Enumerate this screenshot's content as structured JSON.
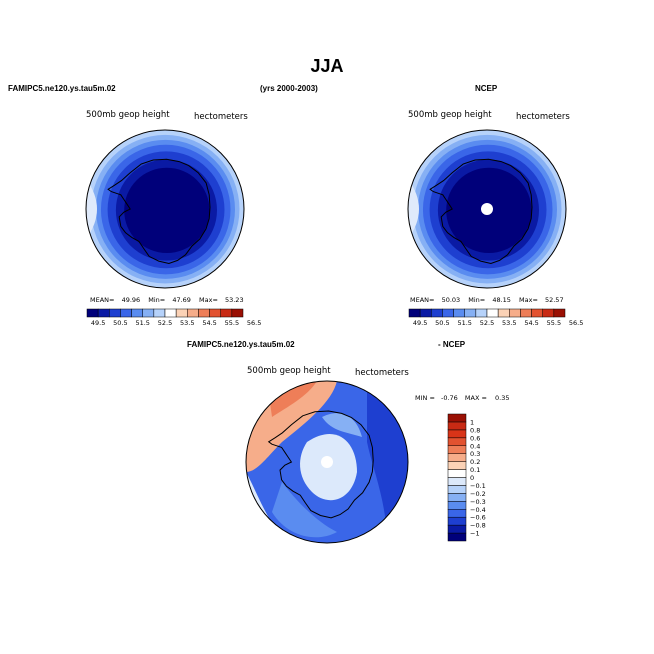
{
  "figure": {
    "title": "JJA",
    "left_title": "FAMIPC5.ne120.ys.tau5m.02",
    "center_title": "(yrs 2000-2003)",
    "right_title": "NCEP",
    "diff_left_title": "FAMIPC5.ne120.ys.tau5m.02",
    "diff_right_title": "- NCEP"
  },
  "panels": [
    {
      "variable": "500mb geop height",
      "units": "hectometers",
      "stats": {
        "mean_label": "MEAN=",
        "mean": "49.96",
        "min_label": "Min=",
        "min": "47.69",
        "max_label": "Max=",
        "max": "53.23"
      }
    },
    {
      "variable": "500mb geop height",
      "units": "hectometers",
      "stats": {
        "mean_label": "MEAN=",
        "mean": "50.03",
        "min_label": "Min=",
        "min": "48.15",
        "max_label": "Max=",
        "max": "52.57"
      }
    },
    {
      "variable": "500mb geop height",
      "units": "hectometers",
      "stats": {
        "min_label": "MIN =",
        "min": "-0.76",
        "max_label": "MAX =",
        "max": "0.35"
      }
    }
  ],
  "colors": {
    "abs_bins": [
      "#00007a",
      "#0a1aa4",
      "#1e3fd0",
      "#3a66e8",
      "#5a8cf0",
      "#86b0f4",
      "#b6d2fa",
      "#ffffff",
      "#fbd2b6",
      "#f6ad8a",
      "#ee7e58",
      "#e25230",
      "#c82a14",
      "#9a1004"
    ],
    "diff_bins": [
      "#00007a",
      "#0a1aa4",
      "#1e3fd0",
      "#3a66e8",
      "#5a8cf0",
      "#86b0f4",
      "#b6d2fa",
      "#dce9fb",
      "#ffffff",
      "#fbd2b6",
      "#f6ad8a",
      "#ee7e58",
      "#e25230",
      "#d83418",
      "#c82a14",
      "#9a1004"
    ]
  },
  "chart_data": [
    {
      "type": "heatmap",
      "projection": "polar-stereographic-south",
      "title": "FAMIPC5.ne120.ys.tau5m.02",
      "variable": "500mb geop height",
      "units": "hectometers",
      "colorbar_levels": [
        49.5,
        50.5,
        51.5,
        52.5,
        53.5,
        54.5,
        55.5,
        56.5
      ],
      "mean": 49.96,
      "min": 47.69,
      "max": 53.23
    },
    {
      "type": "heatmap",
      "projection": "polar-stereographic-south",
      "title": "NCEP",
      "variable": "500mb geop height",
      "units": "hectometers",
      "colorbar_levels": [
        49.5,
        50.5,
        51.5,
        52.5,
        53.5,
        54.5,
        55.5,
        56.5
      ],
      "mean": 50.03,
      "min": 48.15,
      "max": 52.57
    },
    {
      "type": "heatmap",
      "projection": "polar-stereographic-south",
      "title": "FAMIPC5.ne120.ys.tau5m.02 - NCEP",
      "variable": "500mb geop height",
      "units": "hectometers",
      "colorbar_levels": [
        -1,
        -0.8,
        -0.6,
        -0.4,
        -0.3,
        -0.2,
        -0.1,
        0,
        0.1,
        0.2,
        0.3,
        0.4,
        0.6,
        0.8,
        1
      ],
      "min": -0.76,
      "max": 0.35
    }
  ]
}
